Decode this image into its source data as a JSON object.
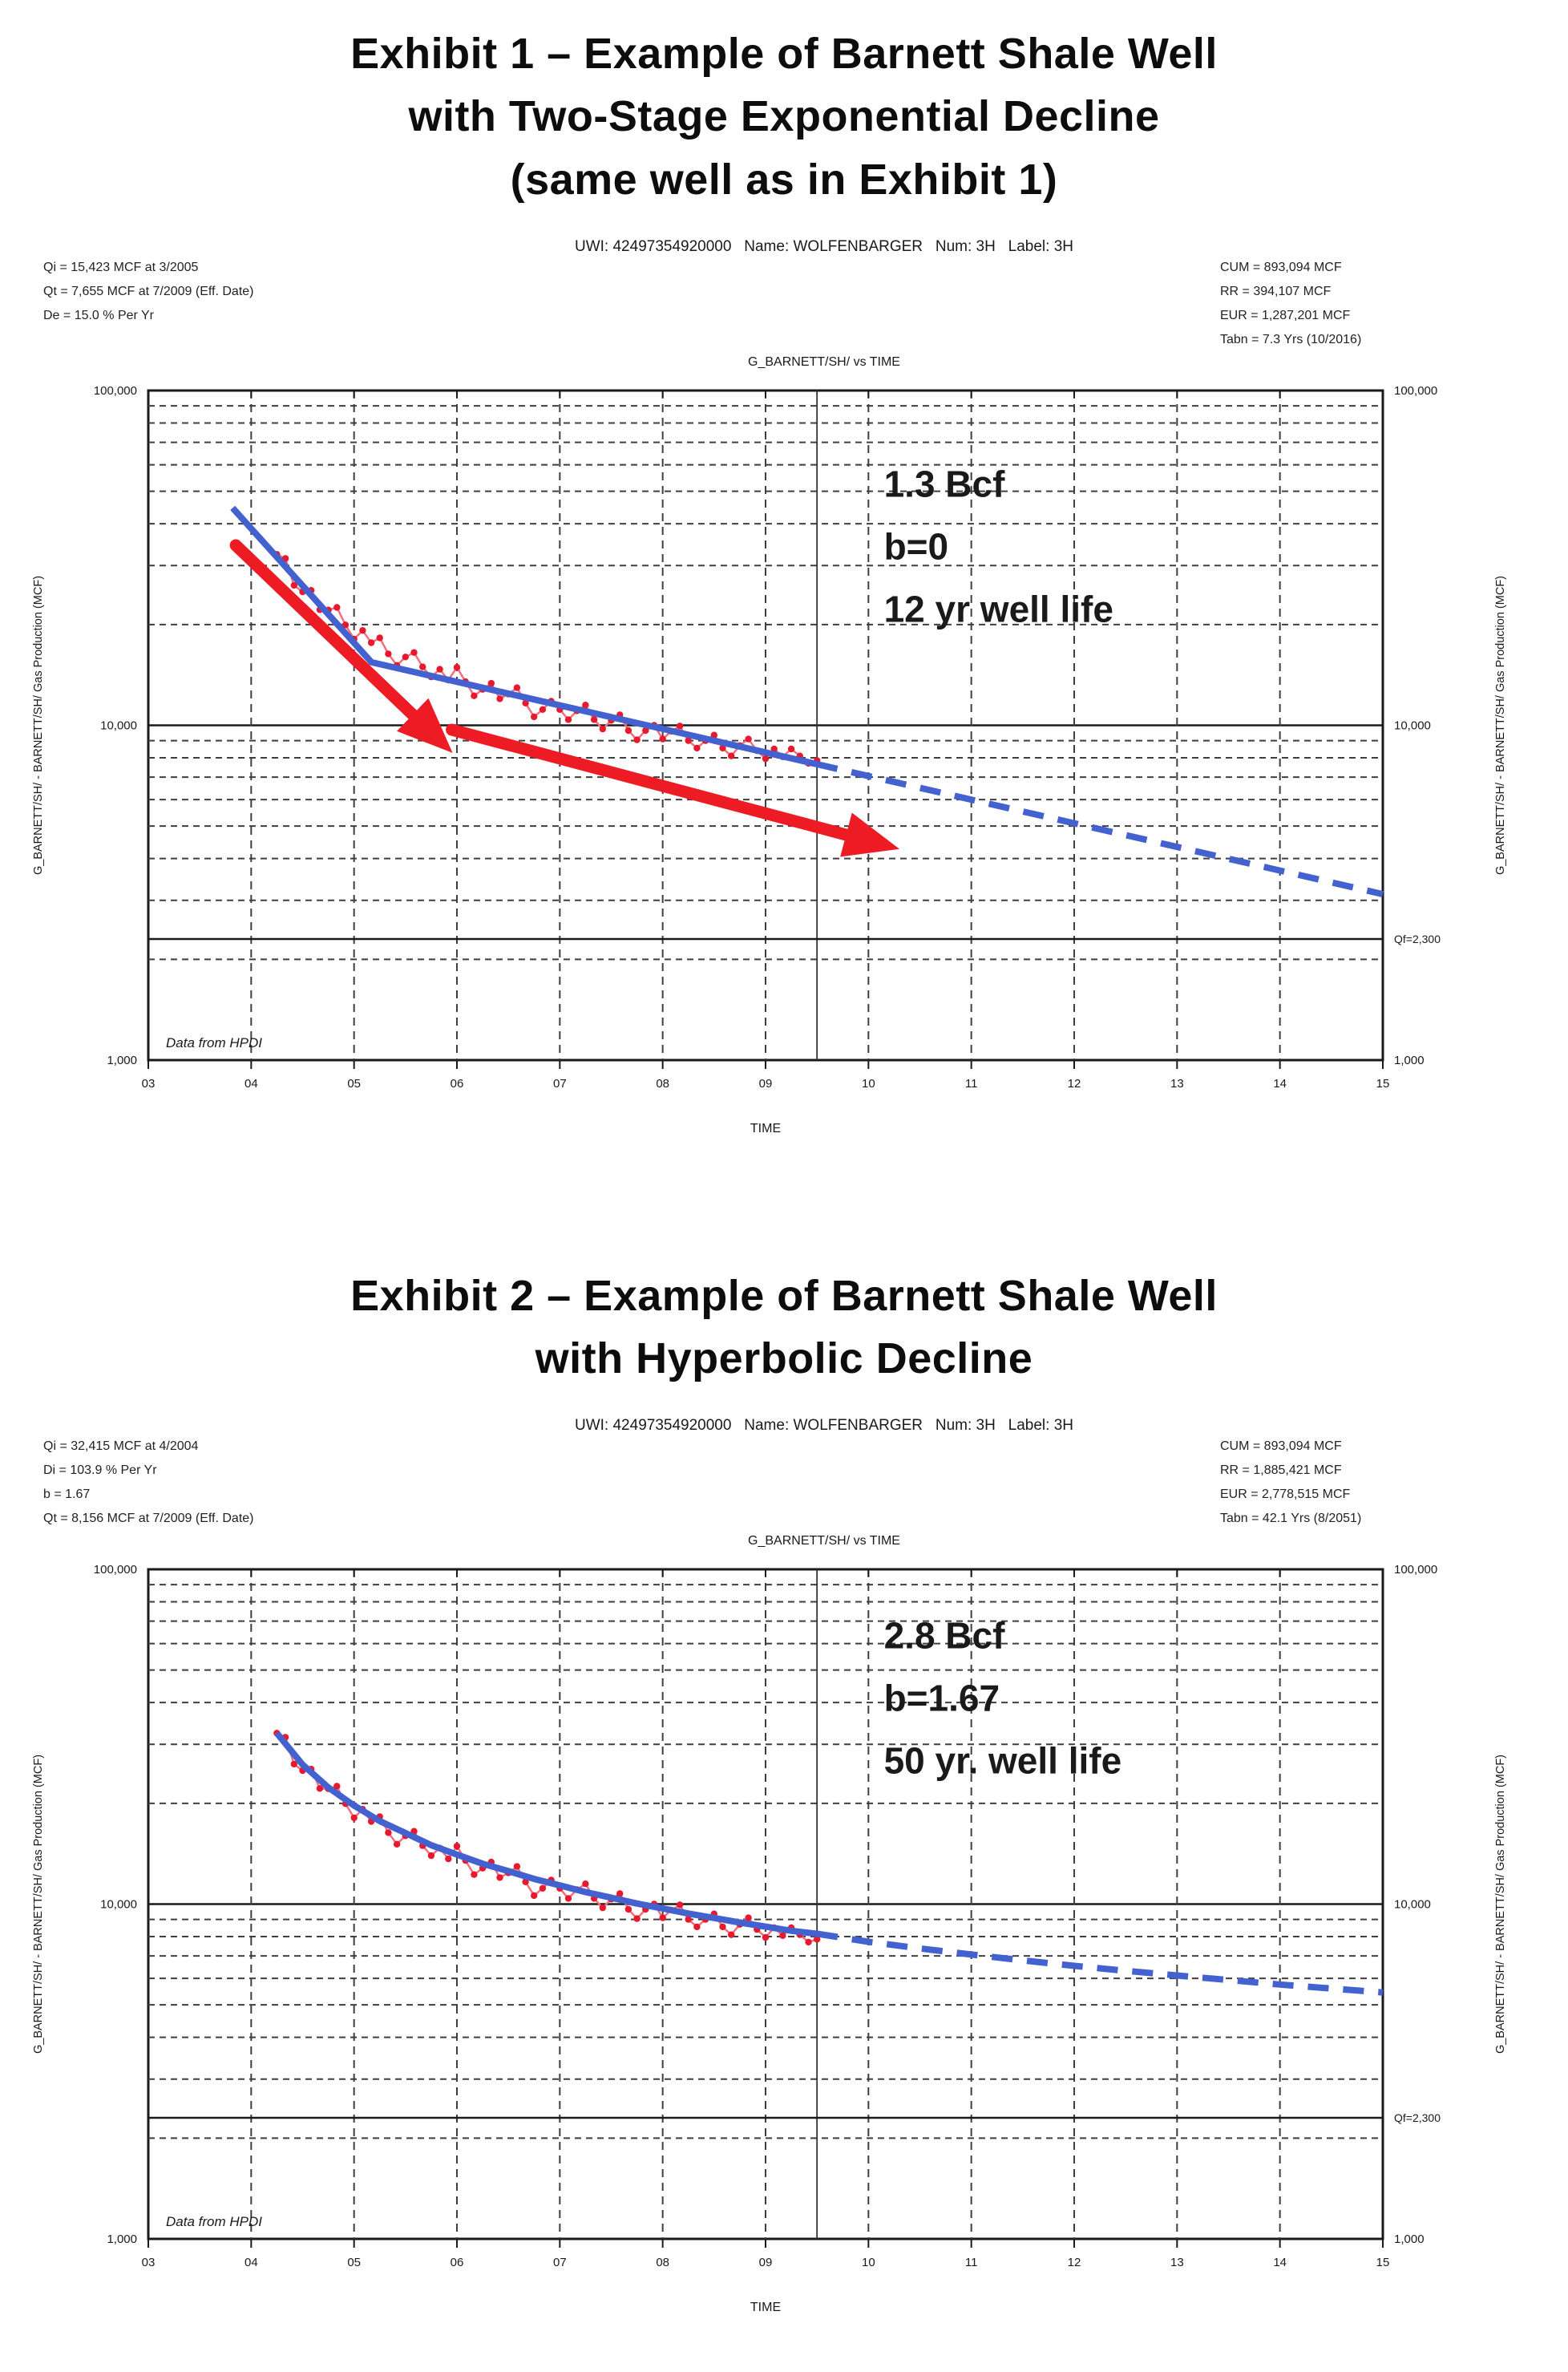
{
  "exhibit1": {
    "title_lines": [
      "Exhibit 1 – Example of Barnett Shale Well",
      "with Two-Stage Exponential Decline",
      "(same well as in Exhibit 1)"
    ]
  },
  "exhibit2": {
    "title_lines": [
      "Exhibit 2 – Example of Barnett Shale Well",
      "with Hyperbolic Decline"
    ]
  },
  "colors": {
    "data_marker": "#e8192c",
    "data_line": "#f2707e",
    "fit_line": "#4462cf",
    "arrow": "#ed1c24",
    "grid": "#3f3f3f",
    "frame": "#1a1a1a"
  },
  "chart_data": [
    {
      "type": "line",
      "title": "G_BARNETT/SH/ vs TIME",
      "header": "UWI: 42497354920000   Name: WOLFENBARGER   Num: 3H   Label: 3H",
      "stats_left": [
        "Qi = 15,423 MCF at 3/2005",
        "Qt = 7,655 MCF at 7/2009 (Eff. Date)",
        "De = 15.0 % Per Yr"
      ],
      "stats_right": [
        "CUM = 893,094 MCF",
        "RR = 394,107 MCF",
        "EUR = 1,287,201 MCF",
        "Tabn = 7.3 Yrs (10/2016)"
      ],
      "xlabel": "TIME",
      "ylabel_left": "G_BARNETT/SH/ - BARNETT/SH/ Gas Production  (MCF)",
      "ylabel_right": "G_BARNETT/SH/ - BARNETT/SH/ Gas Production  (MCF)",
      "xlim": [
        3,
        15
      ],
      "ylim": [
        1000,
        100000
      ],
      "y_scale": "log",
      "grid": "on",
      "x_ticks": [
        {
          "v": 3,
          "label": "03"
        },
        {
          "v": 4,
          "label": "04"
        },
        {
          "v": 5,
          "label": "05"
        },
        {
          "v": 6,
          "label": "06"
        },
        {
          "v": 7,
          "label": "07"
        },
        {
          "v": 8,
          "label": "08"
        },
        {
          "v": 9,
          "label": "09"
        },
        {
          "v": 10,
          "label": "10"
        },
        {
          "v": 11,
          "label": "11"
        },
        {
          "v": 12,
          "label": "12"
        },
        {
          "v": 13,
          "label": "13"
        },
        {
          "v": 14,
          "label": "14"
        },
        {
          "v": 15,
          "label": "15"
        }
      ],
      "y_ticks": [
        {
          "v": 100000,
          "label": "100,000"
        },
        {
          "v": 10000,
          "label": "10,000"
        },
        {
          "v": 1000,
          "label": "1,000"
        }
      ],
      "solid_h_gridline": 10000,
      "eff_date_x": 9.5,
      "qf": {
        "value": 2300,
        "label": "Qf=2,300"
      },
      "data_note": "Data from HPDI",
      "annotation": {
        "x": 10.15,
        "y_value": 58000,
        "lines": [
          "1.3 Bcf",
          "b=0",
          "12 yr well life"
        ]
      },
      "arrows": [
        {
          "from": [
            3.85,
            34500
          ],
          "to": [
            5.62,
            10400
          ]
        },
        {
          "from": [
            5.95,
            9700
          ],
          "to": [
            9.85,
            4650
          ]
        }
      ],
      "series": [
        {
          "name": "monthly-gas-production",
          "kind": "points",
          "t_start": 4.25,
          "dt": 0.083333,
          "values": [
            32400,
            31500,
            26200,
            25050,
            25300,
            22150,
            22100,
            22500,
            19950,
            18100,
            19200,
            17650,
            18250,
            16350,
            15100,
            16000,
            16500,
            14950,
            13950,
            14700,
            13650,
            14900,
            13500,
            12250,
            12800,
            13350,
            12000,
            12400,
            12950,
            11650,
            10600,
            11150,
            11800,
            11150,
            10400,
            11050,
            11500,
            10400,
            9750,
            10350,
            10750,
            9650,
            9050,
            9650,
            10000,
            9100,
            9600,
            9950,
            9000,
            8550,
            9000,
            9350,
            8550,
            8100,
            8700,
            9100,
            8400,
            7950,
            8500,
            8050,
            8500,
            8100,
            7700,
            7850
          ]
        },
        {
          "name": "two-stage-exponential-fit",
          "kind": "solid",
          "points": [
            [
              3.82,
              44600
            ],
            [
              5.17,
              15423
            ],
            [
              9.5,
              7655
            ]
          ]
        },
        {
          "name": "exponential-forecast",
          "kind": "dashed",
          "points": [
            [
              9.5,
              7655
            ],
            [
              15,
              3130
            ]
          ]
        }
      ]
    },
    {
      "type": "line",
      "title": "G_BARNETT/SH/ vs TIME",
      "header": "UWI: 42497354920000   Name: WOLFENBARGER   Num: 3H   Label: 3H",
      "stats_left": [
        "Qi = 32,415 MCF at 4/2004",
        "Di = 103.9 % Per Yr",
        "b = 1.67",
        "Qt = 8,156 MCF at 7/2009 (Eff. Date)"
      ],
      "stats_right": [
        "CUM = 893,094 MCF",
        "RR = 1,885,421 MCF",
        "EUR = 2,778,515 MCF",
        "Tabn = 42.1 Yrs (8/2051)"
      ],
      "xlabel": "TIME",
      "ylabel_left": "G_BARNETT/SH/ - BARNETT/SH/ Gas Production  (MCF)",
      "ylabel_right": "G_BARNETT/SH/ - BARNETT/SH/ Gas Production  (MCF)",
      "xlim": [
        3,
        15
      ],
      "ylim": [
        1000,
        100000
      ],
      "y_scale": "log",
      "grid": "on",
      "x_ticks": [
        {
          "v": 3,
          "label": "03"
        },
        {
          "v": 4,
          "label": "04"
        },
        {
          "v": 5,
          "label": "05"
        },
        {
          "v": 6,
          "label": "06"
        },
        {
          "v": 7,
          "label": "07"
        },
        {
          "v": 8,
          "label": "08"
        },
        {
          "v": 9,
          "label": "09"
        },
        {
          "v": 10,
          "label": "10"
        },
        {
          "v": 11,
          "label": "11"
        },
        {
          "v": 12,
          "label": "12"
        },
        {
          "v": 13,
          "label": "13"
        },
        {
          "v": 14,
          "label": "14"
        },
        {
          "v": 15,
          "label": "15"
        }
      ],
      "y_ticks": [
        {
          "v": 100000,
          "label": "100,000"
        },
        {
          "v": 10000,
          "label": "10,000"
        },
        {
          "v": 1000,
          "label": "1,000"
        }
      ],
      "solid_h_gridline": 10000,
      "eff_date_x": 9.5,
      "qf": {
        "value": 2300,
        "label": "Qf=2,300"
      },
      "data_note": "Data from HPDI",
      "annotation": {
        "x": 10.15,
        "y_value": 70000,
        "lines": [
          "2.8 Bcf",
          "b=1.67",
          "50 yr. well life"
        ]
      },
      "arrows": [],
      "series": [
        {
          "name": "monthly-gas-production",
          "kind": "points",
          "t_start": 4.25,
          "dt": 0.083333,
          "values": [
            32400,
            31500,
            26200,
            25050,
            25300,
            22150,
            22100,
            22500,
            19950,
            18100,
            19200,
            17650,
            18250,
            16350,
            15100,
            16000,
            16500,
            14950,
            13950,
            14700,
            13650,
            14900,
            13500,
            12250,
            12800,
            13350,
            12000,
            12400,
            12950,
            11650,
            10600,
            11150,
            11800,
            11150,
            10400,
            11050,
            11500,
            10400,
            9750,
            10350,
            10750,
            9650,
            9050,
            9650,
            10000,
            9100,
            9600,
            9950,
            9000,
            8550,
            9000,
            9350,
            8550,
            8100,
            8700,
            9100,
            8400,
            7950,
            8500,
            8050,
            8500,
            8100,
            7700,
            7850
          ]
        },
        {
          "name": "hyperbolic-fit",
          "kind": "solid",
          "points": [
            [
              4.25,
              32415
            ],
            [
              4.5,
              26100
            ],
            [
              4.75,
              22300
            ],
            [
              5.0,
              19700
            ],
            [
              5.25,
              17700
            ],
            [
              5.5,
              16300
            ],
            [
              5.75,
              15000
            ],
            [
              6.0,
              14050
            ],
            [
              6.25,
              13200
            ],
            [
              6.5,
              12545
            ],
            [
              6.75,
              11890
            ],
            [
              7.0,
              11375
            ],
            [
              7.25,
              10860
            ],
            [
              7.5,
              10450
            ],
            [
              7.75,
              10040
            ],
            [
              8.0,
              9705
            ],
            [
              8.25,
              9370
            ],
            [
              8.5,
              9090
            ],
            [
              8.75,
              8810
            ],
            [
              9.0,
              8565
            ],
            [
              9.25,
              8320
            ],
            [
              9.5,
              8156
            ]
          ]
        },
        {
          "name": "hyperbolic-forecast",
          "kind": "dashed",
          "points": [
            [
              9.5,
              8156
            ],
            [
              10,
              7715
            ],
            [
              10.5,
              7370
            ],
            [
              11,
              7070
            ],
            [
              11.5,
              6790
            ],
            [
              12,
              6540
            ],
            [
              12.5,
              6320
            ],
            [
              13,
              6120
            ],
            [
              13.5,
              5930
            ],
            [
              14,
              5750
            ],
            [
              14.5,
              5595
            ],
            [
              15,
              5445
            ]
          ]
        }
      ]
    }
  ]
}
